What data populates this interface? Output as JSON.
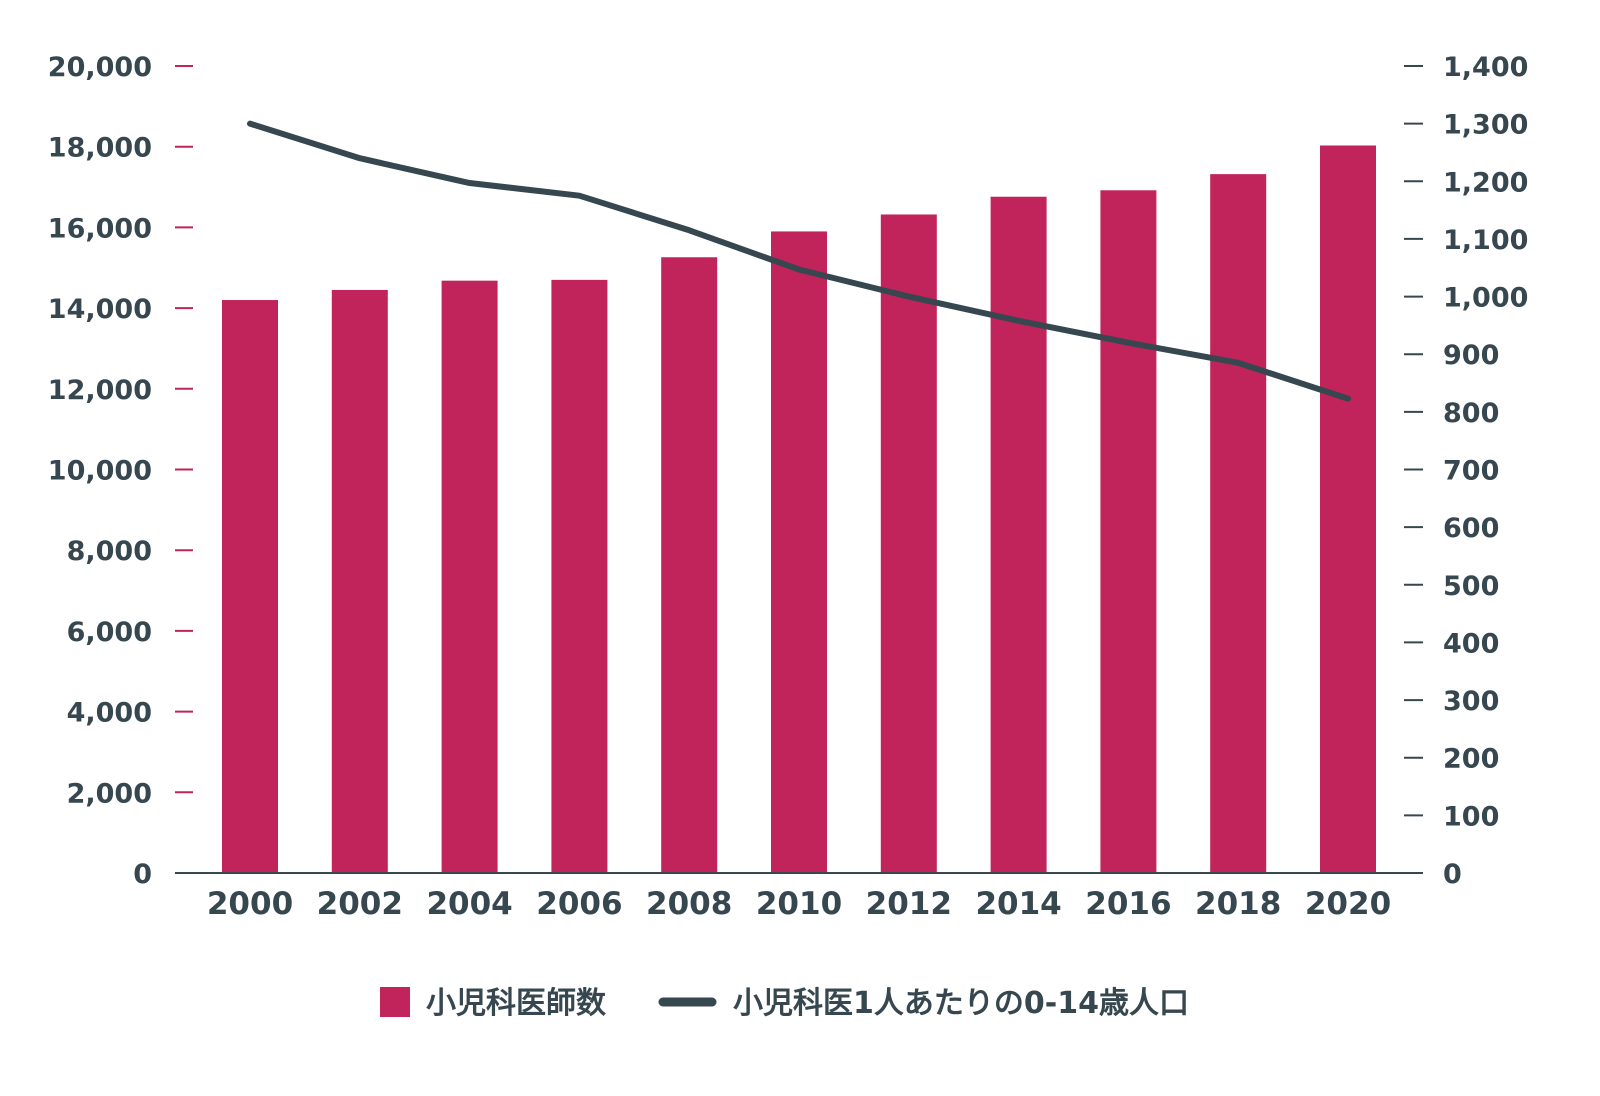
{
  "chart_data": {
    "type": "bar",
    "categories": [
      "2000",
      "2002",
      "2004",
      "2006",
      "2008",
      "2010",
      "2012",
      "2014",
      "2016",
      "2018",
      "2020"
    ],
    "series": [
      {
        "name": "小児科医師数",
        "type": "bar",
        "axis": "left",
        "color": "#c0245a",
        "values": [
          14200,
          14450,
          14680,
          14700,
          15260,
          15900,
          16320,
          16760,
          16920,
          17320,
          18030
        ]
      },
      {
        "name": "小児科医1人あたりの0-14歳人口",
        "type": "line",
        "axis": "right",
        "color": "#37474f",
        "values": [
          1300,
          1240,
          1197,
          1175,
          1115,
          1047,
          1000,
          958,
          920,
          885,
          823
        ]
      }
    ],
    "y_left": {
      "ylim": [
        0,
        20000
      ],
      "ticks": [
        "0",
        "2,000",
        "4,000",
        "6,000",
        "8,000",
        "10,000",
        "12,000",
        "14,000",
        "16,000",
        "18,000",
        "20,000"
      ]
    },
    "y_right": {
      "ylim": [
        0,
        1400
      ],
      "ticks": [
        "0",
        "100",
        "200",
        "300",
        "400",
        "500",
        "600",
        "700",
        "800",
        "900",
        "1,000",
        "1,100",
        "1,200",
        "1,300",
        "1,400"
      ]
    },
    "legend": "bottom-center",
    "grid": false
  }
}
